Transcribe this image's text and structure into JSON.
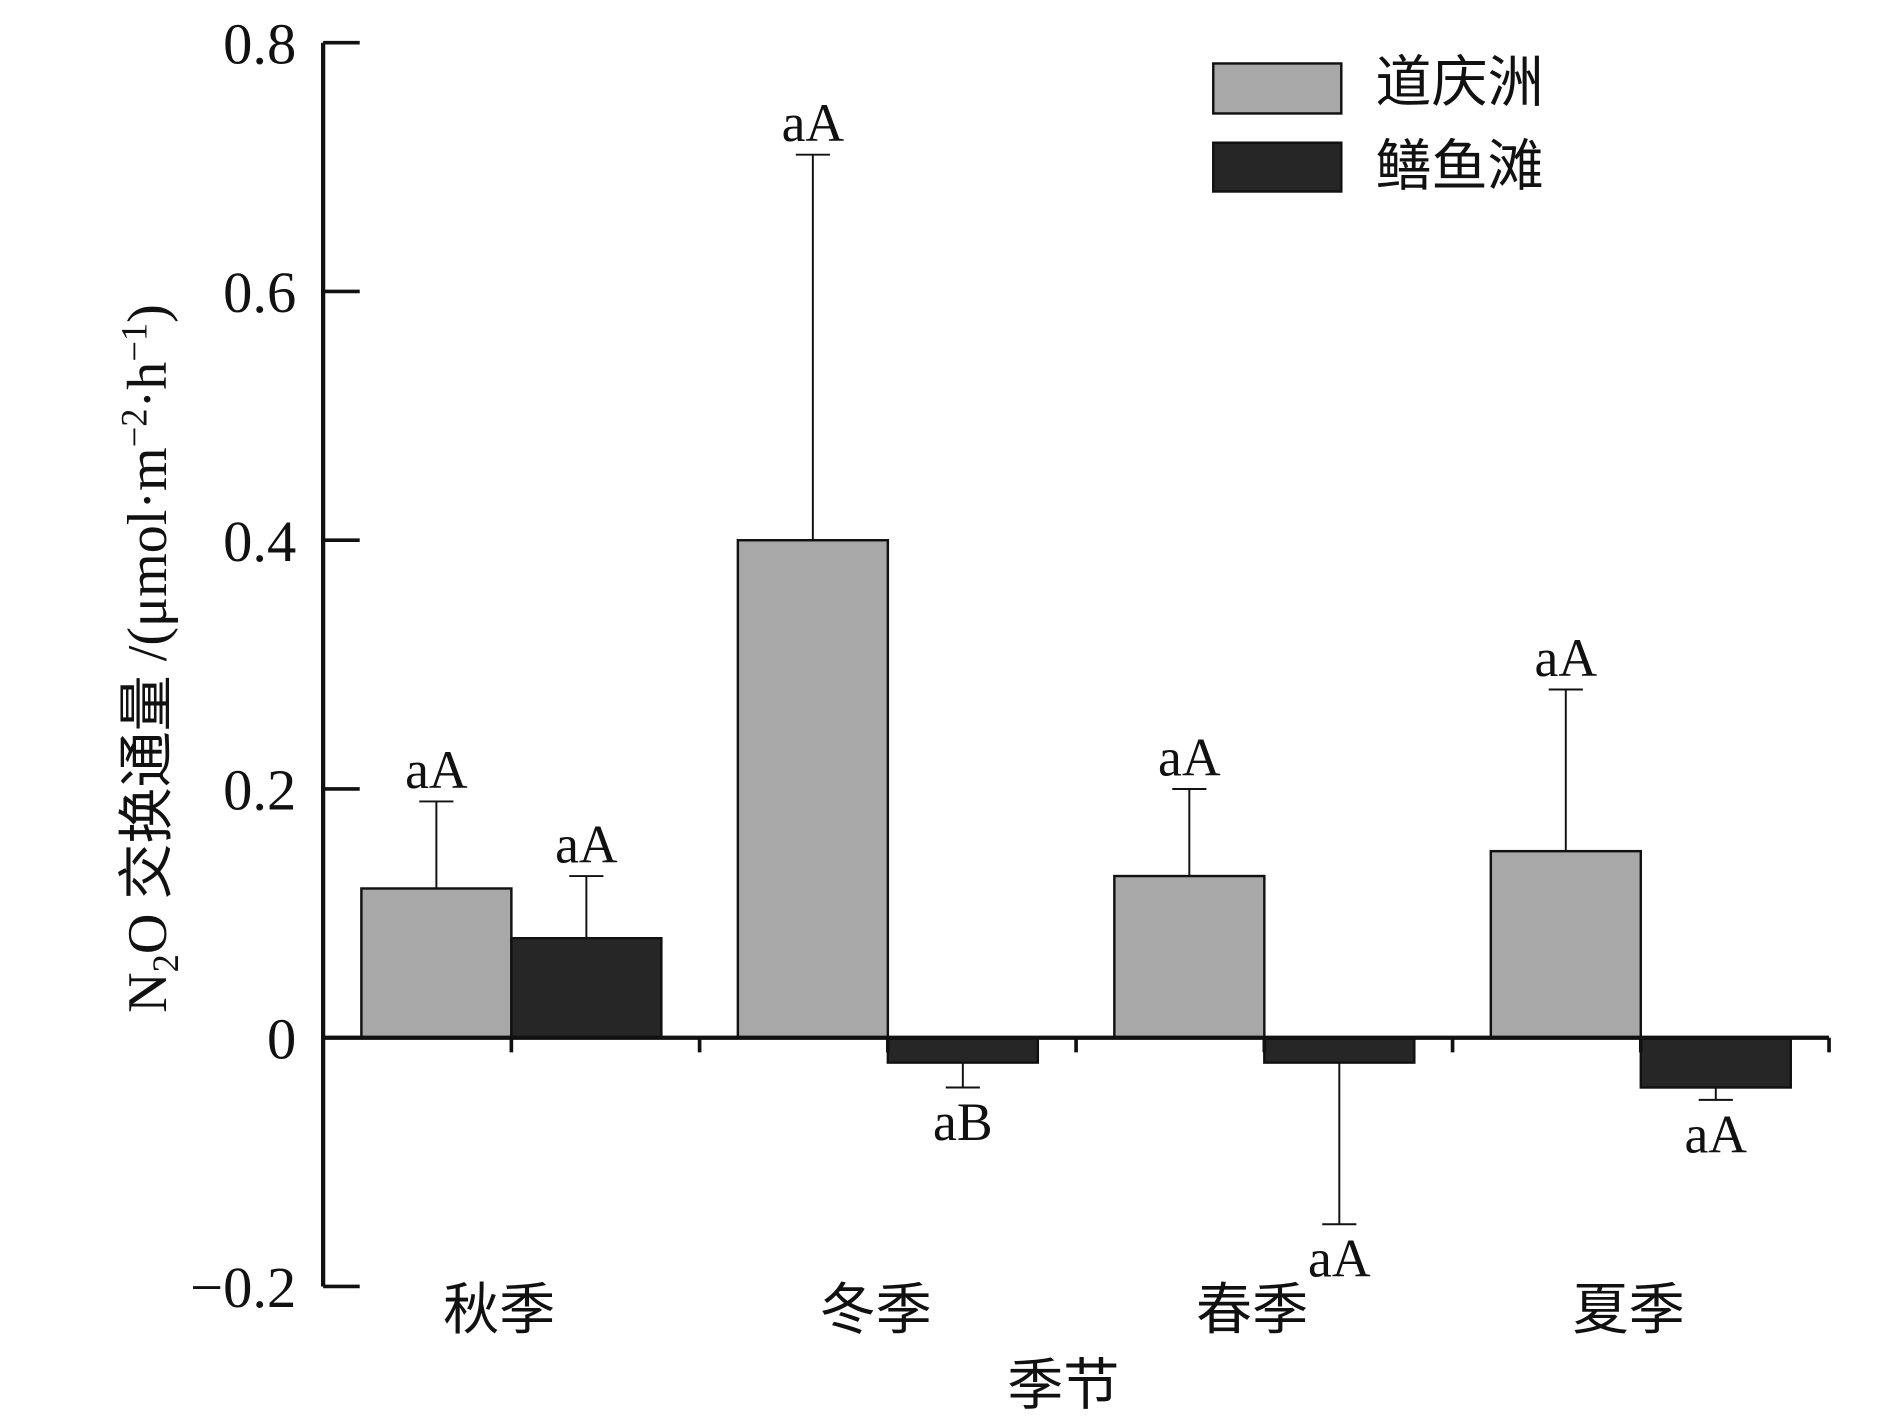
{
  "chart_data": {
    "type": "bar",
    "xlabel": "季节",
    "ylabel": {
      "n": "N",
      "sub": "2",
      "mid": "O 交换通量 /(μmol·m",
      "sup_m": "−2",
      "dot_h": "·h",
      "sup_h": "−1",
      "close": ")"
    },
    "categories": [
      "秋季",
      "冬季",
      "春季",
      "夏季"
    ],
    "ylim": [
      -0.2,
      0.8
    ],
    "yticks": [
      -0.2,
      0,
      0.2,
      0.4,
      0.6,
      0.8
    ],
    "ytick_labels": [
      "−0.2",
      "0",
      "0.2",
      "0.4",
      "0.6",
      "0.8"
    ],
    "grid": false,
    "legend_position": "top-right",
    "series": [
      {
        "name": "道庆洲",
        "color": "#a8a8a8",
        "values": [
          0.12,
          0.4,
          0.13,
          0.15
        ],
        "errors": [
          0.07,
          0.31,
          0.07,
          0.13
        ],
        "labels": [
          "aA",
          "aA",
          "aA",
          "aA"
        ]
      },
      {
        "name": "鳝鱼滩",
        "color": "#262626",
        "values": [
          0.08,
          -0.02,
          -0.02,
          -0.04
        ],
        "errors": [
          0.05,
          0.02,
          0.13,
          0.01
        ],
        "labels": [
          "aA",
          "aB",
          "aA",
          "aA"
        ]
      }
    ]
  }
}
